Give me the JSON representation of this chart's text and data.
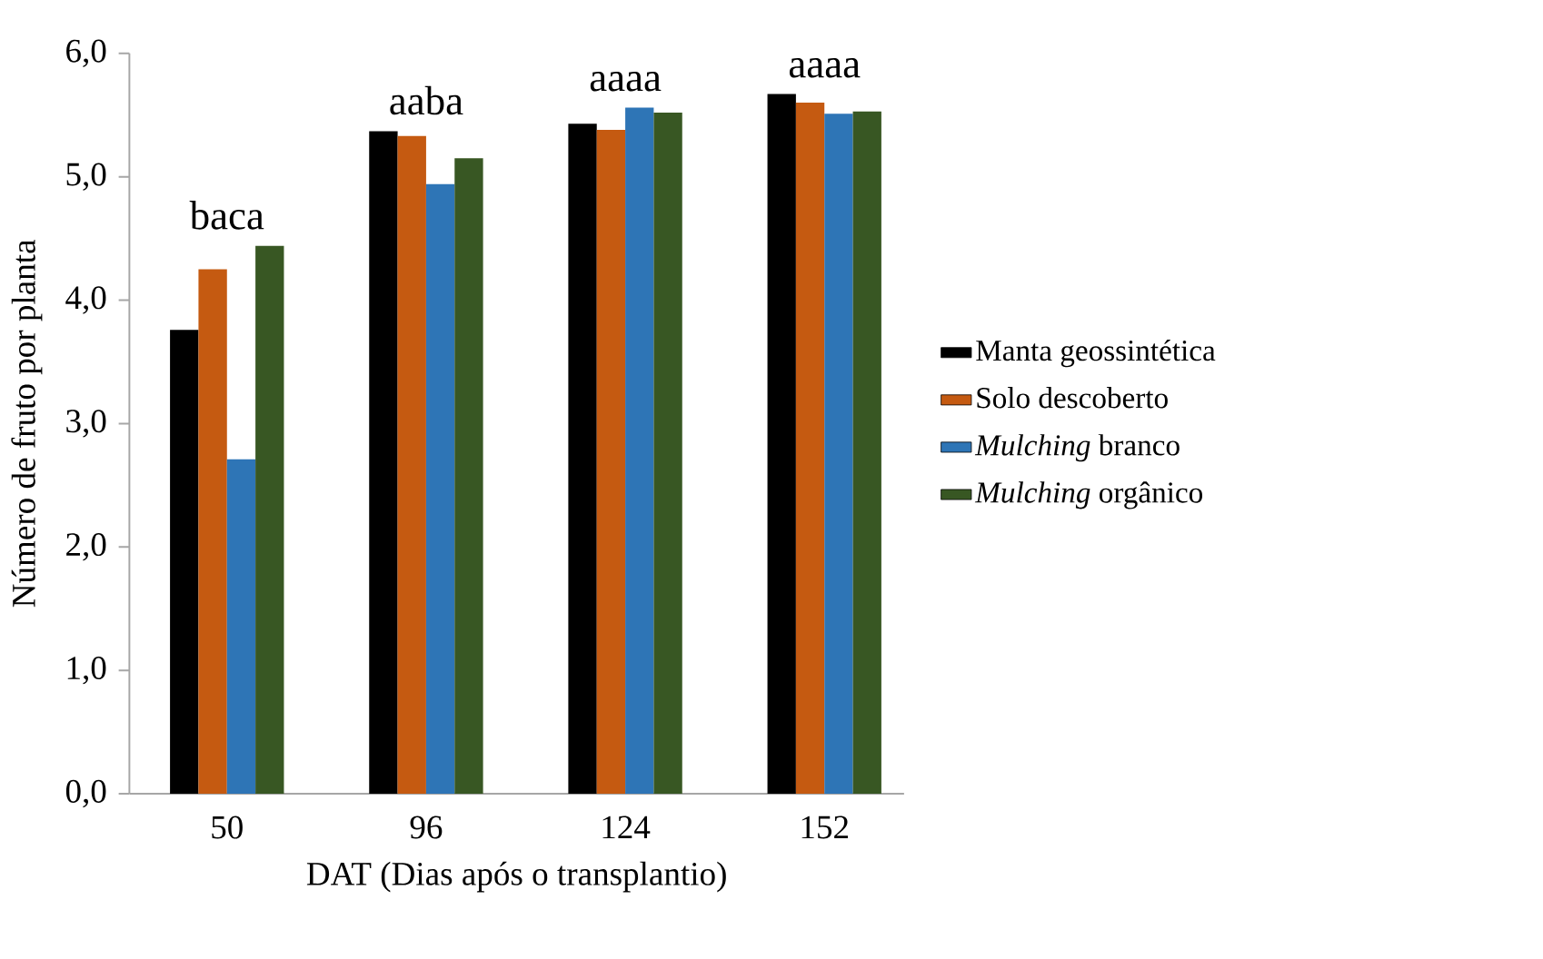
{
  "chart_data": {
    "type": "bar",
    "xlabel": "DAT (Dias após o transplantio)",
    "ylabel": "Número de fruto por planta",
    "categories": [
      "50",
      "96",
      "124",
      "152"
    ],
    "series": [
      {
        "name": "Manta geossintética",
        "color": "#000000",
        "values": [
          3.76,
          5.37,
          5.43,
          5.67
        ]
      },
      {
        "name": "Solo descoberto",
        "color": "#c55a11",
        "values": [
          4.25,
          5.33,
          5.38,
          5.6
        ]
      },
      {
        "name": "*Mulching* branco",
        "color": "#2e75b6",
        "values": [
          2.71,
          4.94,
          5.56,
          5.51
        ]
      },
      {
        "name": "*Mulching* orgânico",
        "color": "#385723",
        "values": [
          4.44,
          5.15,
          5.52,
          5.53
        ]
      }
    ],
    "ylim": [
      0,
      6
    ],
    "yticks": [
      {
        "value": 0,
        "label": "0,0"
      },
      {
        "value": 1,
        "label": "1,0"
      },
      {
        "value": 2,
        "label": "2,0"
      },
      {
        "value": 3,
        "label": "3,0"
      },
      {
        "value": 4,
        "label": "4,0"
      },
      {
        "value": 5,
        "label": "5,0"
      },
      {
        "value": 6,
        "label": "6,0"
      }
    ],
    "annotations": [
      "baca",
      "aaba",
      "aaaa",
      "aaaa"
    ],
    "legend": "right",
    "grid": false
  }
}
